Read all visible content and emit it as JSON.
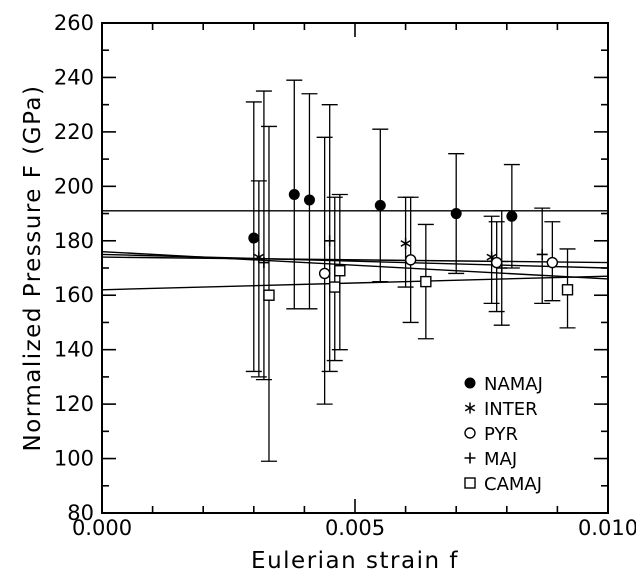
{
  "chart_data": {
    "type": "scatter",
    "xlabel": "Eulerian strain f",
    "ylabel": "Normalized Pressure F (GPa)",
    "xlim": [
      0.0,
      0.01
    ],
    "ylim": [
      80,
      260
    ],
    "x_ticks": [
      "0.000",
      "0.005",
      "0.010"
    ],
    "y_ticks": [
      "80",
      "100",
      "120",
      "140",
      "160",
      "180",
      "200",
      "220",
      "240",
      "260"
    ],
    "grid": false,
    "legend_position": "bottom-right",
    "series": [
      {
        "name": "NAMAJ",
        "marker": "filled-circle",
        "points": [
          {
            "x": 0.003,
            "y": 181,
            "err_low": 132,
            "err_high": 231
          },
          {
            "x": 0.0038,
            "y": 197,
            "err_low": 155,
            "err_high": 239
          },
          {
            "x": 0.0041,
            "y": 195,
            "err_low": 155,
            "err_high": 234
          },
          {
            "x": 0.0055,
            "y": 193,
            "err_low": 165,
            "err_high": 221
          },
          {
            "x": 0.007,
            "y": 190,
            "err_low": 168,
            "err_high": 212
          },
          {
            "x": 0.0081,
            "y": 189,
            "err_low": 170,
            "err_high": 208
          }
        ]
      },
      {
        "name": "INTER",
        "marker": "asterisk",
        "points": [
          {
            "x": 0.0031,
            "y": 174,
            "err_low": 130,
            "err_high": 202
          },
          {
            "x": 0.006,
            "y": 179,
            "err_low": 163,
            "err_high": 196
          },
          {
            "x": 0.0077,
            "y": 174,
            "err_low": 157,
            "err_high": 189
          }
        ]
      },
      {
        "name": "PYR",
        "marker": "open-circle",
        "points": [
          {
            "x": 0.0044,
            "y": 168,
            "err_low": 120,
            "err_high": 218
          },
          {
            "x": 0.0061,
            "y": 173,
            "err_low": 150,
            "err_high": 196
          },
          {
            "x": 0.0078,
            "y": 172,
            "err_low": 154,
            "err_high": 187
          },
          {
            "x": 0.0089,
            "y": 172,
            "err_low": 158,
            "err_high": 187
          }
        ]
      },
      {
        "name": "MAJ",
        "marker": "plus",
        "points": [
          {
            "x": 0.0032,
            "y": 172,
            "err_low": 129,
            "err_high": 235
          },
          {
            "x": 0.0045,
            "y": 180,
            "err_low": 132,
            "err_high": 230
          },
          {
            "x": 0.0079,
            "y": 170,
            "err_low": 149,
            "err_high": 191
          },
          {
            "x": 0.0087,
            "y": 175,
            "err_low": 157,
            "err_high": 192
          }
        ]
      },
      {
        "name": "CAMAJ",
        "marker": "open-square",
        "points": [
          {
            "x": 0.0033,
            "y": 160,
            "err_low": 99,
            "err_high": 222
          },
          {
            "x": 0.0046,
            "y": 163,
            "err_low": 136,
            "err_high": 196
          },
          {
            "x": 0.0047,
            "y": 169,
            "err_low": 140,
            "err_high": 197
          },
          {
            "x": 0.0064,
            "y": 165,
            "err_low": 144,
            "err_high": 186
          },
          {
            "x": 0.0092,
            "y": 162,
            "err_low": 148,
            "err_high": 177
          }
        ]
      }
    ],
    "fit_lines": [
      {
        "x0": 0.0,
        "y0": 191,
        "x1": 0.01,
        "y1": 191
      },
      {
        "x0": 0.0,
        "y0": 176,
        "x1": 0.01,
        "y1": 166
      },
      {
        "x0": 0.0,
        "y0": 175,
        "x1": 0.01,
        "y1": 170
      },
      {
        "x0": 0.0,
        "y0": 174,
        "x1": 0.01,
        "y1": 172
      },
      {
        "x0": 0.0,
        "y0": 162,
        "x1": 0.01,
        "y1": 167
      }
    ]
  }
}
